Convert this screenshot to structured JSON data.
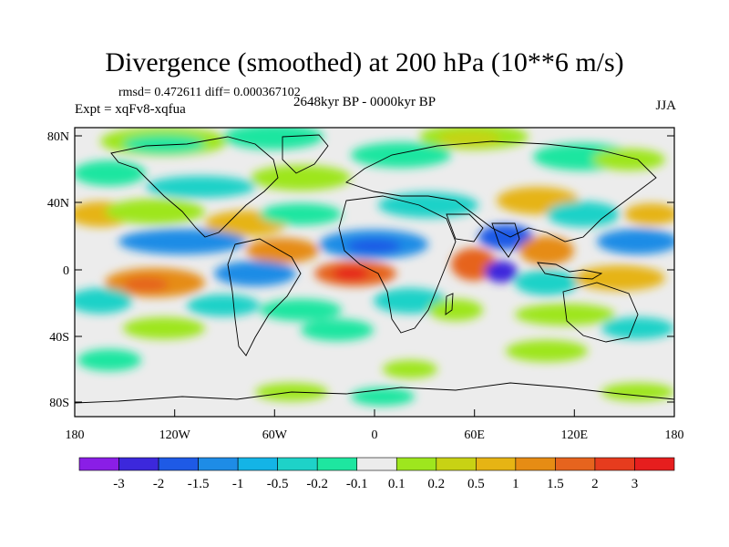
{
  "title": "Divergence (smoothed) at 200 hPa (10**6 m/s)",
  "stats": "rmsd= 0.472611 diff= 0.000367102",
  "experiment": "Expt = xqFv8-xqfua",
  "period": "2648kyr BP - 0000kyr BP",
  "season": "JJA",
  "axes": {
    "lon_ticks": [
      "180",
      "120W",
      "60W",
      "0",
      "60E",
      "120E",
      "180"
    ],
    "lat_ticks": [
      "80N",
      "40N",
      "0",
      "40S",
      "80S"
    ]
  },
  "colorbar": {
    "labels": [
      "-3",
      "-2",
      "-1.5",
      "-1",
      "-0.5",
      "-0.2",
      "-0.1",
      "0.1",
      "0.2",
      "0.5",
      "1",
      "1.5",
      "2",
      "3"
    ],
    "colors": [
      "#8a1ee6",
      "#3c28dc",
      "#1e5ae6",
      "#1e8ce6",
      "#14b4e6",
      "#1ed2c8",
      "#1ee6a0",
      "#ececec",
      "#9ee61e",
      "#c8d214",
      "#e6b414",
      "#e68c14",
      "#e6641e",
      "#e63c1e",
      "#e61e1e"
    ]
  }
}
